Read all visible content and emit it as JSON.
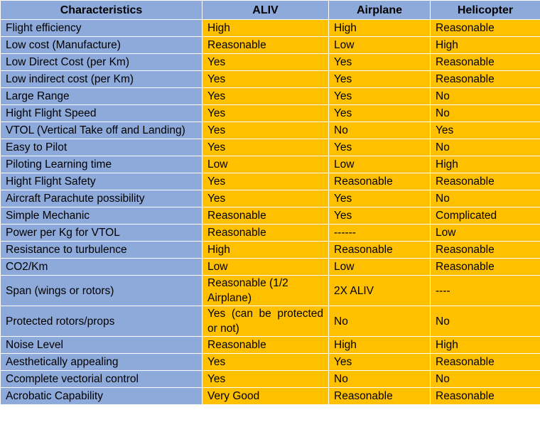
{
  "columns": [
    "Characteristics",
    "ALIV",
    "Airplane",
    "Helicopter"
  ],
  "rows": [
    [
      "Flight efficiency",
      "High",
      "High",
      "Reasonable"
    ],
    [
      "Low cost (Manufacture)",
      "Reasonable",
      "Low",
      "High"
    ],
    [
      "Low Direct Cost (per Km)",
      "Yes",
      "Yes",
      "Reasonable"
    ],
    [
      "Low indirect cost (per Km)",
      "Yes",
      "Yes",
      "Reasonable"
    ],
    [
      "Large Range",
      "Yes",
      "Yes",
      "No"
    ],
    [
      "Hight Flight Speed",
      "Yes",
      "Yes",
      "No"
    ],
    [
      "VTOL (Vertical Take off and Landing)",
      "Yes",
      "No",
      "Yes"
    ],
    [
      "Easy to Pilot",
      "Yes",
      "Yes",
      "No"
    ],
    [
      "Piloting Learning time",
      "Low",
      "Low",
      "High"
    ],
    [
      "Hight Flight Safety",
      "Yes",
      "Reasonable",
      "Reasonable"
    ],
    [
      "Aircraft Parachute possibility",
      "Yes",
      "Yes",
      "No"
    ],
    [
      "Simple Mechanic",
      "Reasonable",
      "Yes",
      "Complicated"
    ],
    [
      "Power per Kg for VTOL",
      "Reasonable",
      "------",
      "Low"
    ],
    [
      "Resistance to turbulence",
      "High",
      "Reasonable",
      "Reasonable"
    ],
    [
      "CO2/Km",
      "Low",
      "Low",
      "Reasonable"
    ],
    [
      "Span (wings or rotors)",
      "Reasonable (1/2 Airplane)",
      "2X ALIV",
      "----"
    ],
    [
      "Protected rotors/props",
      "Yes (can be protected or not)",
      "No",
      "No"
    ],
    [
      "Noise Level",
      "Reasonable",
      "High",
      "High"
    ],
    [
      "Aesthetically appealing",
      "Yes",
      "Yes",
      "Reasonable"
    ],
    [
      "Ccomplete vectorial control",
      "Yes",
      "No",
      "No"
    ],
    [
      "Acrobatic Capability",
      "Very Good",
      "Reasonable",
      "Reasonable"
    ]
  ]
}
